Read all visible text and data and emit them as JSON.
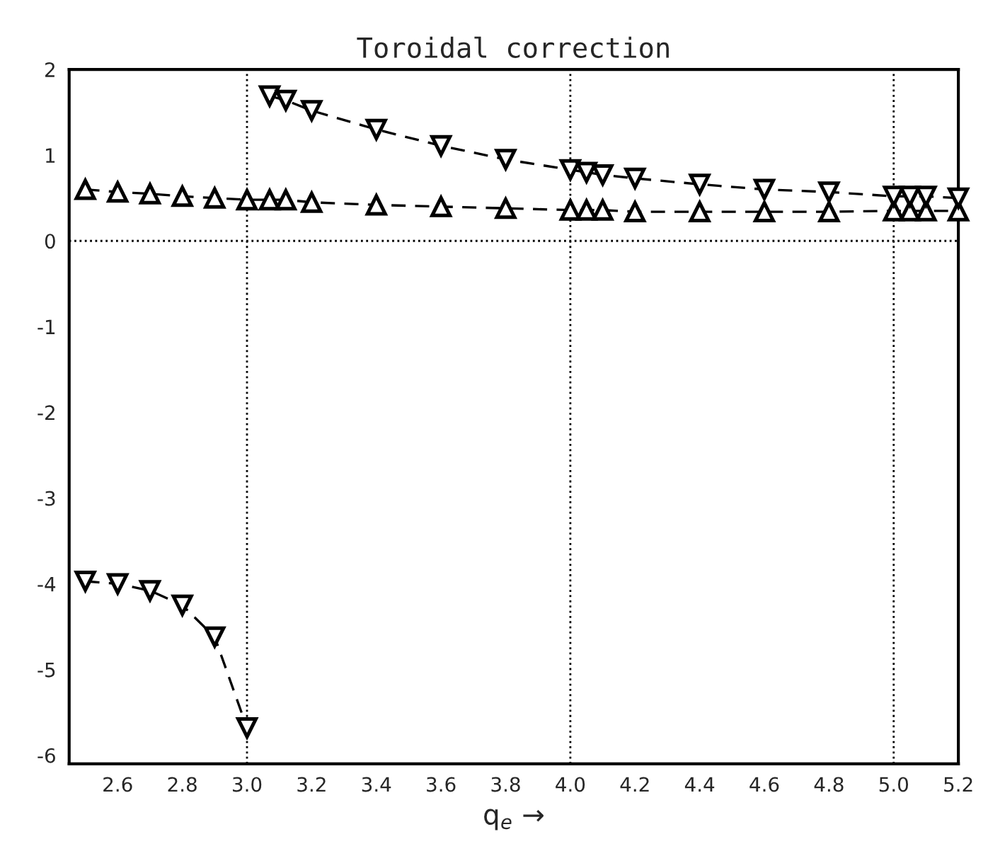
{
  "chart_data": {
    "type": "line",
    "title": "Toroidal correction",
    "xlabel": "q$_{e}$ →",
    "xlim": [
      2.45,
      5.2
    ],
    "ylim": [
      -6.1,
      2
    ],
    "xticks": [
      2.6,
      2.8,
      {
        "value": 3.0,
        "label": "3.0"
      },
      3.2,
      3.4,
      3.6,
      3.8,
      {
        "value": 4.0,
        "label": "4.0"
      },
      4.2,
      4.4,
      4.6,
      4.8,
      {
        "value": 5.0,
        "label": "5.0"
      },
      5.2
    ],
    "yticks": [
      -6,
      -5,
      -4,
      -3,
      -2,
      -1,
      0,
      1,
      2
    ],
    "grid": false,
    "line_style": "dashed",
    "ref_lines": [
      {
        "axis": "x",
        "value": 3.0,
        "line_style": "dotted",
        "color": "#000000"
      },
      {
        "axis": "x",
        "value": 4.0,
        "line_style": "dotted",
        "color": "#000000"
      },
      {
        "axis": "x",
        "value": 5.0,
        "line_style": "dotted",
        "color": "#000000"
      },
      {
        "axis": "y",
        "value": 0,
        "line_style": "dotted",
        "color": "#000000"
      }
    ],
    "series": [
      {
        "color": "#000000",
        "marker": "triangle",
        "x": [
          2.5,
          2.6,
          2.7,
          2.8,
          2.9,
          3.0,
          3.07,
          3.12,
          3.2,
          3.4,
          3.6,
          3.8,
          4.0,
          4.05,
          4.1,
          4.2,
          4.4,
          4.6,
          4.8,
          5.0,
          5.05,
          5.1,
          5.2
        ],
        "values": [
          0.6,
          0.57,
          0.55,
          0.52,
          0.5,
          0.48,
          0.48,
          0.48,
          0.45,
          0.42,
          0.4,
          0.38,
          0.36,
          0.36,
          0.36,
          0.34,
          0.34,
          0.34,
          0.34,
          0.35,
          0.35,
          0.35,
          0.35
        ]
      },
      {
        "color": "#000000",
        "marker": "triangle_down",
        "x": [
          2.5,
          2.6,
          2.7,
          2.8,
          2.9,
          3.0,
          3.03,
          3.07,
          3.12,
          3.2,
          3.4,
          3.6,
          3.8,
          4.0,
          4.05,
          4.1,
          4.2,
          4.4,
          4.6,
          4.8,
          5.0,
          5.05,
          5.1,
          5.2
        ],
        "values": [
          -3.97,
          -4.0,
          -4.08,
          -4.25,
          -4.62,
          -5.68,
          null,
          1.69,
          1.64,
          1.52,
          1.3,
          1.11,
          0.95,
          0.83,
          0.8,
          0.77,
          0.73,
          0.66,
          0.6,
          0.57,
          0.52,
          0.52,
          0.52,
          0.5
        ]
      }
    ]
  }
}
